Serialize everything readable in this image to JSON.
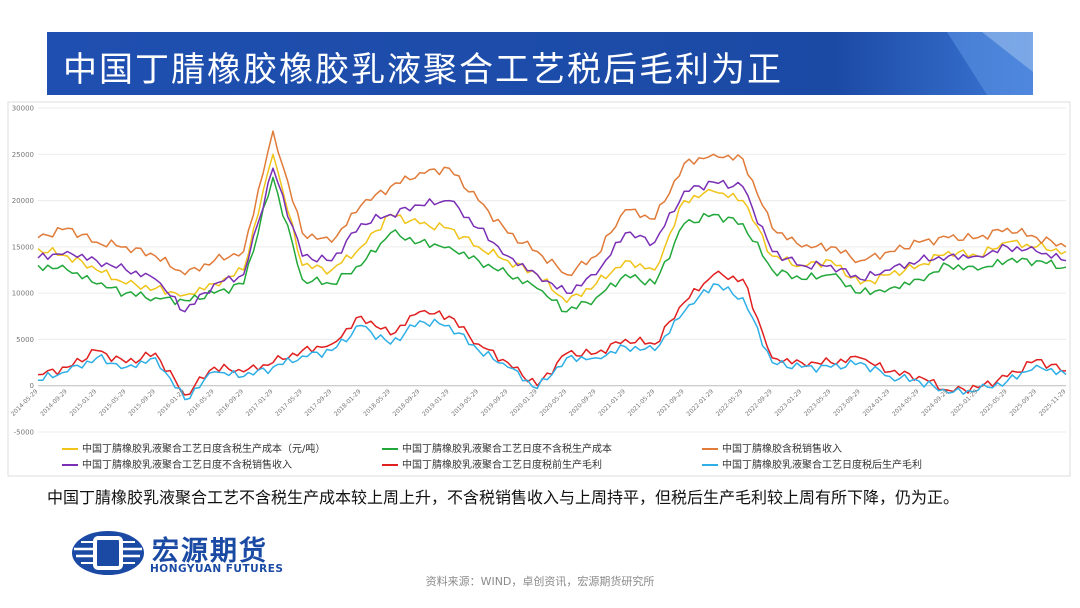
{
  "slide": {
    "title": "中国丁腈橡胶橡胶乳液聚合工艺税后毛利为正",
    "caption": "中国丁腈橡胶乳液聚合工艺不含税生产成本较上周上升，不含税销售收入与上周持平，但税后生产毛利较上周有所下降，仍为正。",
    "source": "资料来源：WIND，卓创资讯，宏源期货研究所",
    "logo_cn": "宏源期货",
    "logo_en": "HONGYUAN FUTURES",
    "title_bar_color": "#1f4fb0"
  },
  "chart_data": {
    "type": "line",
    "ylim": [
      -5000,
      30000
    ],
    "yticks": [
      30000,
      25000,
      20000,
      15000,
      10000,
      5000,
      0,
      -5000
    ],
    "ytick_labels": [
      "30000",
      "25000",
      "20000",
      "15000",
      "10000",
      "5000",
      "0",
      "-5000"
    ],
    "grid": true,
    "legend_position": "bottom",
    "x_tick_labels": [
      "2014-05-29",
      "2014-09-29",
      "2015-01-29",
      "2015-05-29",
      "2015-09-29",
      "2016-01-29",
      "2016-05-29",
      "2016-09-29",
      "2017-01-29",
      "2017-05-29",
      "2017-09-29",
      "2018-01-29",
      "2018-05-29",
      "2018-09-29",
      "2019-01-29",
      "2019-05-29",
      "2019-09-29",
      "2020-01-29",
      "2020-05-29",
      "2020-09-29",
      "2021-01-29",
      "2021-05-29",
      "2021-09-29",
      "2022-01-29",
      "2022-05-29",
      "2022-09-29",
      "2023-01-29",
      "2023-05-29",
      "2023-09-29",
      "2024-01-29",
      "2024-05-29",
      "2024-09-29",
      "2025-01-29",
      "2025-05-29",
      "2025-09-29",
      "2025-11-29"
    ],
    "x": [
      "2014-05",
      "2014-09",
      "2015-01",
      "2015-05",
      "2015-09",
      "2016-01",
      "2016-05",
      "2016-09",
      "2017-01",
      "2017-05",
      "2017-09",
      "2018-01",
      "2018-05",
      "2018-09",
      "2019-01",
      "2019-05",
      "2019-09",
      "2020-01",
      "2020-05",
      "2020-09",
      "2021-01",
      "2021-05",
      "2021-09",
      "2022-01",
      "2022-05",
      "2022-09",
      "2023-01",
      "2023-05",
      "2023-09",
      "2024-01",
      "2024-05",
      "2024-09",
      "2025-01",
      "2025-05",
      "2025-09",
      "2025-11"
    ],
    "series": [
      {
        "name": "中国丁腈橡胶乳液聚合工艺日度含税生产成本（元/吨）",
        "color": "#f0c419",
        "values": [
          14800,
          14000,
          12500,
          11000,
          10500,
          9800,
          11000,
          12500,
          25000,
          13000,
          12500,
          15000,
          18500,
          17500,
          17000,
          15000,
          13500,
          12000,
          9000,
          11000,
          13500,
          12500,
          20000,
          21000,
          20000,
          14000,
          13000,
          13500,
          11000,
          12000,
          13000,
          14500,
          14000,
          15500,
          15000,
          14500
        ]
      },
      {
        "name": "中国丁腈橡胶乳液聚合工艺日度不含税生产成本",
        "color": "#22a83a",
        "values": [
          13000,
          12500,
          11000,
          10000,
          9500,
          9200,
          10000,
          11000,
          22500,
          11500,
          11000,
          13000,
          16500,
          15500,
          15000,
          13500,
          12000,
          10500,
          8000,
          9500,
          12000,
          11000,
          17500,
          18500,
          17500,
          12500,
          11500,
          12000,
          10000,
          10500,
          11500,
          13000,
          12500,
          13500,
          13500,
          12800
        ]
      },
      {
        "name": "中国丁腈橡胶含税销售收入",
        "color": "#e07b39",
        "values": [
          16000,
          17000,
          15500,
          15000,
          14000,
          12000,
          13500,
          14500,
          27500,
          16500,
          15500,
          19500,
          21500,
          23000,
          23500,
          20000,
          16500,
          14500,
          12000,
          14000,
          19000,
          18000,
          24000,
          25000,
          24500,
          17000,
          15000,
          15000,
          13500,
          14500,
          15500,
          16000,
          16000,
          17000,
          16000,
          15000
        ]
      },
      {
        "name": "中国丁腈橡胶乳液聚合工艺日度不含税销售收入",
        "color": "#7a2fb5",
        "values": [
          13800,
          14500,
          13500,
          12500,
          11500,
          8000,
          11000,
          12000,
          23500,
          14000,
          13500,
          17500,
          18500,
          19500,
          20000,
          17000,
          14000,
          12000,
          10000,
          12000,
          16500,
          15500,
          21000,
          22000,
          21500,
          14500,
          13000,
          13000,
          11500,
          12500,
          13500,
          14000,
          14000,
          15000,
          14500,
          13500
        ]
      },
      {
        "name": "中国丁腈橡胶乳液聚合工艺日度税前生产毛利",
        "color": "#e02020",
        "values": [
          1200,
          2000,
          3800,
          2500,
          3500,
          -1000,
          2000,
          1500,
          2500,
          3800,
          4500,
          7500,
          5500,
          8000,
          7500,
          4500,
          2500,
          0,
          3500,
          3500,
          5000,
          4500,
          9000,
          12000,
          11500,
          3000,
          2500,
          2500,
          3000,
          1500,
          1000,
          -500,
          -200,
          1000,
          2800,
          1600
        ]
      },
      {
        "name": "中国丁腈橡胶乳液聚合工艺日度税后生产毛利",
        "color": "#2eafe6",
        "values": [
          600,
          1500,
          3000,
          2000,
          3000,
          -1500,
          1500,
          1000,
          2000,
          3200,
          3800,
          6500,
          4500,
          7000,
          6500,
          3800,
          2000,
          -300,
          3000,
          3000,
          4200,
          3800,
          8000,
          11000,
          9500,
          2500,
          2000,
          2000,
          2500,
          1000,
          500,
          -800,
          -500,
          500,
          2200,
          1200
        ]
      }
    ]
  }
}
